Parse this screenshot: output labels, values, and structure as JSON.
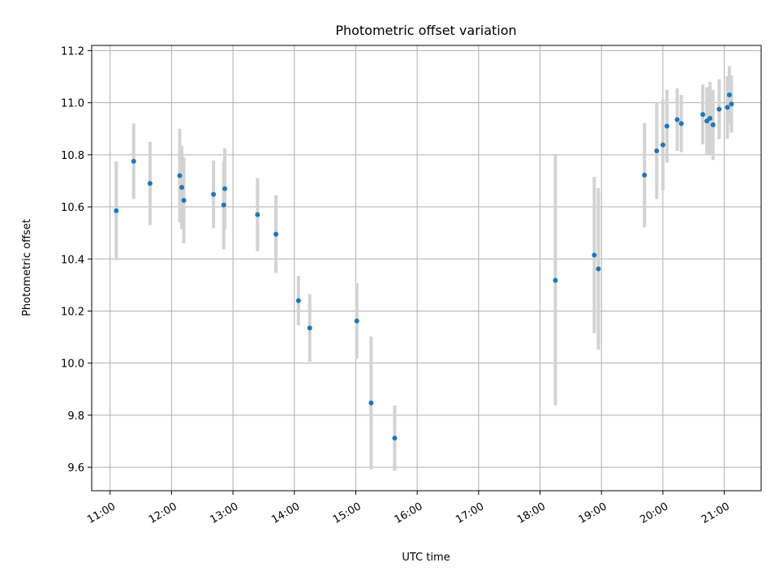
{
  "chart_data": {
    "type": "scatter",
    "title": "Photometric offset variation",
    "xlabel": "UTC time",
    "ylabel": "Photometric offset",
    "x_unit": "UTC time (HH:MM)",
    "xlim": [
      "10:42",
      "21:36"
    ],
    "ylim": [
      9.51,
      11.22
    ],
    "grid": true,
    "x_ticks": [
      "11:00",
      "12:00",
      "13:00",
      "14:00",
      "15:00",
      "16:00",
      "17:00",
      "18:00",
      "19:00",
      "20:00",
      "21:00"
    ],
    "y_ticks": [
      "9.6",
      "9.8",
      "10.0",
      "10.2",
      "10.4",
      "10.6",
      "10.8",
      "11.0",
      "11.2"
    ],
    "colors": {
      "point": "#1f77b4",
      "errorbar": "#d3d3d3",
      "grid": "#b0b0b0"
    },
    "series": [
      {
        "points": [
          {
            "x": "11:06",
            "y": 10.585,
            "err": 0.19
          },
          {
            "x": "11:23",
            "y": 10.775,
            "err": 0.145
          },
          {
            "x": "11:39",
            "y": 10.69,
            "err": 0.16
          },
          {
            "x": "12:08",
            "y": 10.72,
            "err": 0.18
          },
          {
            "x": "12:10",
            "y": 10.675,
            "err": 0.16
          },
          {
            "x": "12:12",
            "y": 10.625,
            "err": 0.165
          },
          {
            "x": "12:41",
            "y": 10.648,
            "err": 0.13
          },
          {
            "x": "12:51",
            "y": 10.607,
            "err": 0.17
          },
          {
            "x": "12:52",
            "y": 10.67,
            "err": 0.155
          },
          {
            "x": "13:24",
            "y": 10.57,
            "err": 0.14
          },
          {
            "x": "13:42",
            "y": 10.495,
            "err": 0.15
          },
          {
            "x": "14:04",
            "y": 10.24,
            "err": 0.095
          },
          {
            "x": "14:15",
            "y": 10.135,
            "err": 0.13
          },
          {
            "x": "15:01",
            "y": 10.162,
            "err": 0.145
          },
          {
            "x": "15:15",
            "y": 9.847,
            "err": 0.255
          },
          {
            "x": "15:38",
            "y": 9.712,
            "err": 0.125
          },
          {
            "x": "18:15",
            "y": 10.318,
            "err": 0.48
          },
          {
            "x": "18:53",
            "y": 10.415,
            "err": 0.3
          },
          {
            "x": "18:57",
            "y": 10.362,
            "err": 0.31
          },
          {
            "x": "19:42",
            "y": 10.722,
            "err": 0.2
          },
          {
            "x": "19:54",
            "y": 10.815,
            "err": 0.185
          },
          {
            "x": "20:00",
            "y": 10.838,
            "err": 0.175
          },
          {
            "x": "20:04",
            "y": 10.91,
            "err": 0.14
          },
          {
            "x": "20:14",
            "y": 10.935,
            "err": 0.12
          },
          {
            "x": "20:18",
            "y": 10.92,
            "err": 0.11
          },
          {
            "x": "20:39",
            "y": 10.955,
            "err": 0.115
          },
          {
            "x": "20:43",
            "y": 10.93,
            "err": 0.13
          },
          {
            "x": "20:46",
            "y": 10.94,
            "err": 0.14
          },
          {
            "x": "20:49",
            "y": 10.915,
            "err": 0.135
          },
          {
            "x": "20:55",
            "y": 10.975,
            "err": 0.115
          },
          {
            "x": "21:03",
            "y": 10.982,
            "err": 0.12
          },
          {
            "x": "21:05",
            "y": 11.03,
            "err": 0.11
          },
          {
            "x": "21:07",
            "y": 10.995,
            "err": 0.11
          }
        ]
      }
    ]
  }
}
